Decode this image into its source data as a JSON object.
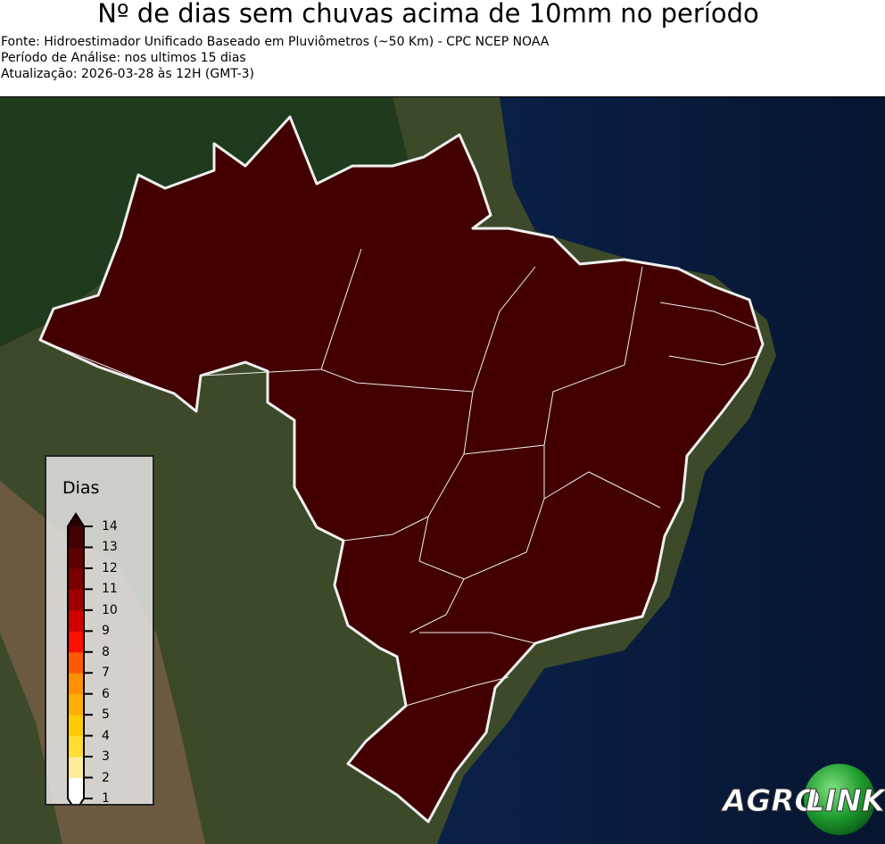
{
  "header": {
    "title": "Nº de dias sem chuvas acima de 10mm no período",
    "source": "Fonte: Hidroestimador Unificado Baseado em Pluviômetros (~50 Km) - CPC NCEP NOAA",
    "period": "Período de Análise: nos ultimos 15 dias",
    "updated": "Atualização: 2026-03-28 às 12H (GMT-3)"
  },
  "map": {
    "region_fill_color": "#420000",
    "region_value_days": "14+",
    "border_color": "#ffffff"
  },
  "legend": {
    "title": "Dias",
    "ticks": [
      "1",
      "2",
      "3",
      "4",
      "5",
      "6",
      "7",
      "8",
      "9",
      "10",
      "11",
      "12",
      "13",
      "14"
    ],
    "colors": [
      "#ffffff",
      "#ffec99",
      "#ffdd33",
      "#ffcc00",
      "#ffb000",
      "#ff9000",
      "#ff5a00",
      "#ff1000",
      "#d00000",
      "#a00000",
      "#7a0000",
      "#5c0000",
      "#420000"
    ],
    "over_color": "#2a0000",
    "under_color": "#ffffff"
  },
  "logo": {
    "text_left": "AGRO",
    "text_right": "LINK"
  }
}
